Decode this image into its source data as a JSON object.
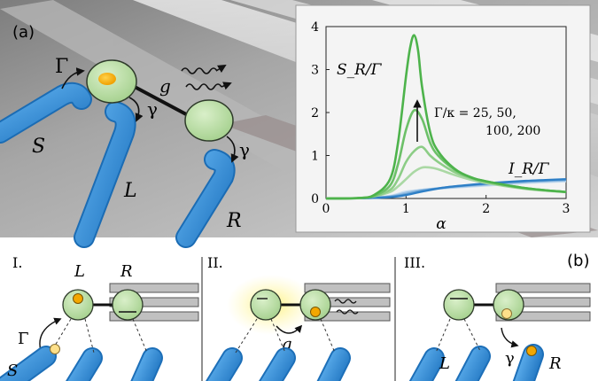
{
  "figure": {
    "panel_a_label": "(a)",
    "panel_b_label": "(b)",
    "scene": {
      "pump_rate": "Γ",
      "coupling": "g",
      "decay_left": "γ",
      "decay_right": "γ",
      "source_lead": "S",
      "left_lead": "L",
      "right_lead": "R"
    },
    "stages": [
      {
        "roman": "I.",
        "dot_left": "L",
        "dot_right": "R",
        "rate": "Γ",
        "lead": "S"
      },
      {
        "roman": "II.",
        "coupling": "g"
      },
      {
        "roman": "III.",
        "rate": "γ",
        "lead_left": "L",
        "lead_right": "R"
      }
    ]
  },
  "chart_data": {
    "type": "line",
    "xlabel": "α",
    "ylabel": "",
    "xlim": [
      0,
      3
    ],
    "ylim": [
      0,
      4
    ],
    "xticks": [
      "0",
      "1",
      "2",
      "3"
    ],
    "yticks": [
      "0",
      "1",
      "2",
      "3",
      "4"
    ],
    "grid": false,
    "annotations": {
      "s_label": "S_R/Γ",
      "i_label": "I_R/Γ",
      "gamma_line1": "Γ/κ = 25, 50,",
      "gamma_line2": "100, 200"
    },
    "colors": {
      "s_series": [
        "#aad8a4",
        "#8ccd86",
        "#6cc068",
        "#4db34b"
      ],
      "i_series": [
        "#c6dcef",
        "#99c0e3",
        "#6aa3d5",
        "#2e7fc6"
      ]
    },
    "series": [
      {
        "x": [
          0,
          0.4,
          0.6,
          0.8,
          0.9,
          1.0,
          1.1,
          1.2,
          1.3,
          1.4,
          1.6,
          1.8,
          2.0,
          2.5,
          3.0
        ],
        "values": [
          0.0,
          0.01,
          0.05,
          0.15,
          0.28,
          0.45,
          0.62,
          0.72,
          0.72,
          0.68,
          0.55,
          0.44,
          0.36,
          0.22,
          0.15
        ]
      },
      {
        "x": [
          0,
          0.4,
          0.6,
          0.8,
          0.9,
          1.0,
          1.1,
          1.2,
          1.3,
          1.4,
          1.6,
          1.8,
          2.0,
          2.5,
          3.0
        ],
        "values": [
          0.0,
          0.01,
          0.05,
          0.2,
          0.45,
          0.85,
          1.1,
          1.2,
          1.0,
          0.85,
          0.62,
          0.48,
          0.38,
          0.23,
          0.15
        ]
      },
      {
        "x": [
          0,
          0.4,
          0.6,
          0.8,
          0.9,
          1.0,
          1.1,
          1.2,
          1.3,
          1.4,
          1.6,
          1.8,
          2.0,
          2.5,
          3.0
        ],
        "values": [
          0.0,
          0.01,
          0.06,
          0.3,
          0.8,
          1.6,
          2.05,
          1.85,
          1.3,
          1.0,
          0.68,
          0.5,
          0.4,
          0.24,
          0.15
        ]
      },
      {
        "x": [
          0,
          0.4,
          0.6,
          0.8,
          0.9,
          1.0,
          1.05,
          1.1,
          1.15,
          1.2,
          1.3,
          1.4,
          1.6,
          1.8,
          2.0,
          2.5,
          3.0
        ],
        "values": [
          0.0,
          0.01,
          0.08,
          0.45,
          1.3,
          2.85,
          3.5,
          3.8,
          3.45,
          2.6,
          1.55,
          1.1,
          0.7,
          0.5,
          0.4,
          0.24,
          0.15
        ]
      }
    ],
    "i_series": [
      {
        "x": [
          0,
          0.5,
          0.8,
          1.0,
          1.2,
          1.5,
          2.0,
          2.5,
          3.0
        ],
        "values": [
          0.0,
          0.01,
          0.06,
          0.16,
          0.2,
          0.24,
          0.3,
          0.36,
          0.4
        ]
      },
      {
        "x": [
          0,
          0.5,
          0.8,
          1.0,
          1.2,
          1.5,
          2.0,
          2.5,
          3.0
        ],
        "values": [
          0.0,
          0.01,
          0.05,
          0.13,
          0.2,
          0.25,
          0.32,
          0.38,
          0.42
        ]
      },
      {
        "x": [
          0,
          0.5,
          0.8,
          1.0,
          1.2,
          1.5,
          2.0,
          2.5,
          3.0
        ],
        "values": [
          0.0,
          0.01,
          0.04,
          0.1,
          0.18,
          0.26,
          0.34,
          0.4,
          0.44
        ]
      },
      {
        "x": [
          0,
          0.5,
          0.8,
          1.0,
          1.2,
          1.5,
          2.0,
          2.5,
          3.0
        ],
        "values": [
          0.0,
          0.01,
          0.03,
          0.08,
          0.16,
          0.26,
          0.35,
          0.41,
          0.45
        ]
      }
    ]
  }
}
